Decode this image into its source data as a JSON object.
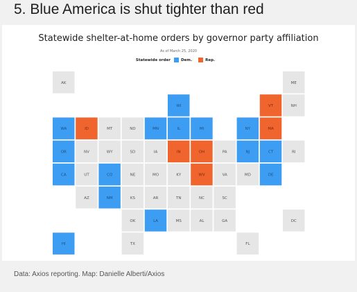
{
  "headline": "5. Blue America is shut tighter than red",
  "source_note": "Data: Axios reporting. Map: Danielle Alberti/Axios",
  "colors": {
    "dem": "#3d9df3",
    "rep": "#f0642d",
    "none": "#e6e6e6",
    "dem_text": "#1c4f80",
    "rep_text": "#7a2a12",
    "none_text": "#555555"
  },
  "chart_data": {
    "type": "tile-map",
    "title": "Statewide shelter-at-home orders by governor party affiliation",
    "subtitle": "As of March 25, 2020",
    "legend": {
      "title": "Statewide order",
      "entries": [
        {
          "key": "dem",
          "label": "Dem."
        },
        {
          "key": "rep",
          "label": "Rep."
        }
      ]
    },
    "tiles": [
      {
        "state": "AK",
        "col": 0,
        "row": 0,
        "order": "none"
      },
      {
        "state": "ME",
        "col": 10,
        "row": 0,
        "order": "none"
      },
      {
        "state": "WI",
        "col": 5,
        "row": 1,
        "order": "dem"
      },
      {
        "state": "VT",
        "col": 9,
        "row": 1,
        "order": "rep"
      },
      {
        "state": "NH",
        "col": 10,
        "row": 1,
        "order": "none"
      },
      {
        "state": "WA",
        "col": 0,
        "row": 2,
        "order": "dem"
      },
      {
        "state": "ID",
        "col": 1,
        "row": 2,
        "order": "rep"
      },
      {
        "state": "MT",
        "col": 2,
        "row": 2,
        "order": "none"
      },
      {
        "state": "ND",
        "col": 3,
        "row": 2,
        "order": "none"
      },
      {
        "state": "MN",
        "col": 4,
        "row": 2,
        "order": "dem"
      },
      {
        "state": "IL",
        "col": 5,
        "row": 2,
        "order": "dem"
      },
      {
        "state": "MI",
        "col": 6,
        "row": 2,
        "order": "dem"
      },
      {
        "state": "NY",
        "col": 8,
        "row": 2,
        "order": "dem"
      },
      {
        "state": "MA",
        "col": 9,
        "row": 2,
        "order": "rep"
      },
      {
        "state": "OR",
        "col": 0,
        "row": 3,
        "order": "dem"
      },
      {
        "state": "NV",
        "col": 1,
        "row": 3,
        "order": "none"
      },
      {
        "state": "WY",
        "col": 2,
        "row": 3,
        "order": "none"
      },
      {
        "state": "SD",
        "col": 3,
        "row": 3,
        "order": "none"
      },
      {
        "state": "IA",
        "col": 4,
        "row": 3,
        "order": "none"
      },
      {
        "state": "IN",
        "col": 5,
        "row": 3,
        "order": "rep"
      },
      {
        "state": "OH",
        "col": 6,
        "row": 3,
        "order": "rep"
      },
      {
        "state": "PA",
        "col": 7,
        "row": 3,
        "order": "none"
      },
      {
        "state": "NJ",
        "col": 8,
        "row": 3,
        "order": "dem"
      },
      {
        "state": "CT",
        "col": 9,
        "row": 3,
        "order": "dem"
      },
      {
        "state": "RI",
        "col": 10,
        "row": 3,
        "order": "none"
      },
      {
        "state": "CA",
        "col": 0,
        "row": 4,
        "order": "dem"
      },
      {
        "state": "UT",
        "col": 1,
        "row": 4,
        "order": "none"
      },
      {
        "state": "CO",
        "col": 2,
        "row": 4,
        "order": "dem"
      },
      {
        "state": "NE",
        "col": 3,
        "row": 4,
        "order": "none"
      },
      {
        "state": "MO",
        "col": 4,
        "row": 4,
        "order": "none"
      },
      {
        "state": "KY",
        "col": 5,
        "row": 4,
        "order": "none"
      },
      {
        "state": "WV",
        "col": 6,
        "row": 4,
        "order": "rep"
      },
      {
        "state": "VA",
        "col": 7,
        "row": 4,
        "order": "none"
      },
      {
        "state": "MD",
        "col": 8,
        "row": 4,
        "order": "none"
      },
      {
        "state": "DE",
        "col": 9,
        "row": 4,
        "order": "dem"
      },
      {
        "state": "AZ",
        "col": 1,
        "row": 5,
        "order": "none"
      },
      {
        "state": "NM",
        "col": 2,
        "row": 5,
        "order": "dem"
      },
      {
        "state": "KS",
        "col": 3,
        "row": 5,
        "order": "none"
      },
      {
        "state": "AR",
        "col": 4,
        "row": 5,
        "order": "none"
      },
      {
        "state": "TN",
        "col": 5,
        "row": 5,
        "order": "none"
      },
      {
        "state": "NC",
        "col": 6,
        "row": 5,
        "order": "none"
      },
      {
        "state": "SC",
        "col": 7,
        "row": 5,
        "order": "none"
      },
      {
        "state": "OK",
        "col": 3,
        "row": 6,
        "order": "none"
      },
      {
        "state": "LA",
        "col": 4,
        "row": 6,
        "order": "dem"
      },
      {
        "state": "MS",
        "col": 5,
        "row": 6,
        "order": "none"
      },
      {
        "state": "AL",
        "col": 6,
        "row": 6,
        "order": "none"
      },
      {
        "state": "GA",
        "col": 7,
        "row": 6,
        "order": "none"
      },
      {
        "state": "DC",
        "col": 10,
        "row": 6,
        "order": "none"
      },
      {
        "state": "HI",
        "col": 0,
        "row": 7,
        "order": "dem"
      },
      {
        "state": "TX",
        "col": 3,
        "row": 7,
        "order": "none"
      },
      {
        "state": "FL",
        "col": 8,
        "row": 7,
        "order": "none"
      }
    ]
  }
}
